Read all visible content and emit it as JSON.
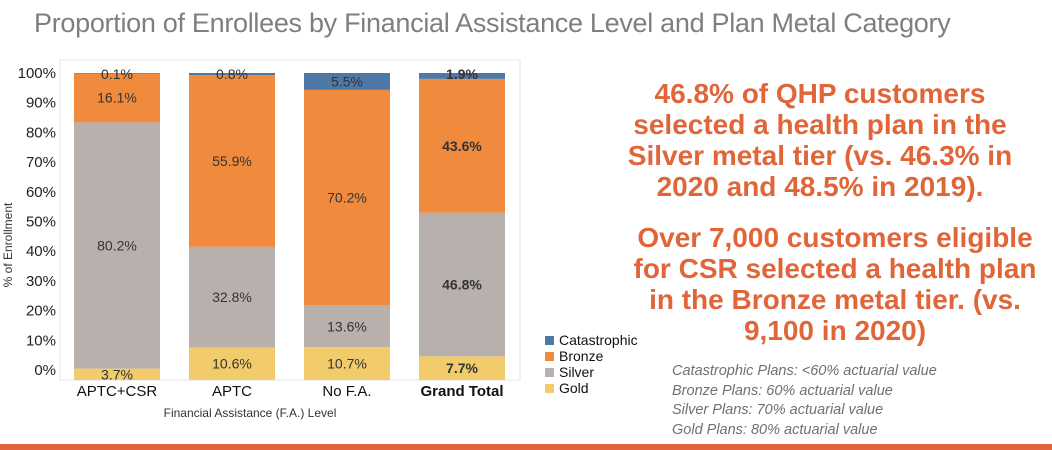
{
  "title": "Proportion of Enrollees by Financial Assistance Level and Plan Metal Category",
  "chart_data": {
    "type": "bar",
    "stacked": true,
    "xlabel": "Financial Assistance (F.A.) Level",
    "ylabel": "% of Enrollment",
    "ylim": [
      0,
      100
    ],
    "yticks": [
      "0%",
      "10%",
      "20%",
      "30%",
      "40%",
      "50%",
      "60%",
      "70%",
      "80%",
      "90%",
      "100%"
    ],
    "categories": [
      "APTC+CSR",
      "APTC",
      "No F.A.",
      "Grand Total"
    ],
    "series": [
      {
        "name": "Gold",
        "color": "#f2cc6b",
        "values": [
          3.7,
          10.6,
          10.7,
          7.7
        ],
        "labels": [
          "3.7%",
          "10.6%",
          "10.7%",
          "7.7%"
        ]
      },
      {
        "name": "Silver",
        "color": "#b8b0ad",
        "values": [
          80.2,
          32.8,
          13.6,
          46.8
        ],
        "labels": [
          "80.2%",
          "32.8%",
          "13.6%",
          "46.8%"
        ]
      },
      {
        "name": "Bronze",
        "color": "#f08a3c",
        "values": [
          16.1,
          55.9,
          70.2,
          43.6
        ],
        "labels": [
          "16.1%",
          "55.9%",
          "70.2%",
          "43.6%"
        ]
      },
      {
        "name": "Catastrophic",
        "color": "#4e79a7",
        "values": [
          0.1,
          0.8,
          5.5,
          1.9
        ],
        "labels": [
          "0.1%",
          "0.8%",
          "5.5%",
          "1.9%"
        ]
      }
    ],
    "legend_order": [
      "Catastrophic",
      "Bronze",
      "Silver",
      "Gold"
    ],
    "legend_position": "bottom-right",
    "grid": false
  },
  "callouts": [
    "46.8% of QHP customers selected a health plan in the Silver metal tier (vs. 46.3% in 2020 and 48.5% in 2019).",
    "Over 7,000 customers eligible for CSR selected a health plan in the Bronze metal tier. (vs. 9,100 in 2020)"
  ],
  "notes": [
    "Catastrophic Plans: <60% actuarial value",
    "Bronze Plans: 60% actuarial value",
    "Silver Plans: 70% actuarial value",
    "Gold Plans: 80% actuarial value"
  ],
  "accent_color": "#e0663a"
}
